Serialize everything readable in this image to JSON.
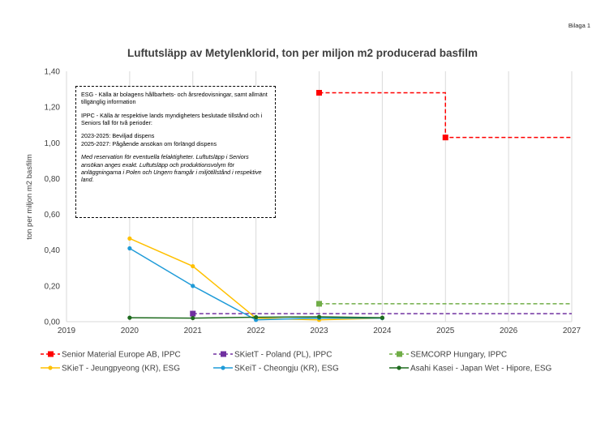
{
  "page_label": "Bilaga 1",
  "note": {
    "esg": "ESG - Källa är bolagens hållbarhets- och årsredovisningar, samt allmänt tillgänglig information",
    "ippc": "IPPC - Källa är respektive lands myndigheters beslutade tillstånd och i Seniors fall för två perioder:",
    "period1": "2023-2025: Beviljad dispens",
    "period2": "2025-2027: Pågående ansökan om förlängd dispens",
    "reservation": "Med reservation för eventuella felaktigheter. Luftutsläpp i Seniors ansökan anges exakt. Luftutsläpp och produktionsvolym för anläggningarna i Polen och Ungern framgår i miljötillstånd i respektive land."
  },
  "chart_data": {
    "type": "line",
    "title": "Luftutsläpp av Metylenklorid, ton per miljon m2 producerad basfilm",
    "xlabel": "",
    "ylabel": "ton per miljon m2 basfilm",
    "xlim": [
      2019,
      2027
    ],
    "ylim": [
      0,
      1.4
    ],
    "xticks": [
      "2019",
      "2020",
      "2021",
      "2022",
      "2023",
      "2024",
      "2025",
      "2026",
      "2027"
    ],
    "yticks": [
      "0,00",
      "0,20",
      "0,40",
      "0,60",
      "0,80",
      "1,00",
      "1,20",
      "1,40"
    ],
    "grid": "vertical",
    "legend_position": "bottom",
    "series": [
      {
        "name": "Senior Material Europe AB, IPPC",
        "color": "#ff0000",
        "style": "dashed-step",
        "marker": "square",
        "points": [
          [
            2023,
            1.28
          ],
          [
            2025,
            1.28
          ],
          [
            2025,
            1.03
          ],
          [
            2027,
            1.03
          ]
        ],
        "marker_points": [
          [
            2023,
            1.28
          ],
          [
            2025,
            1.03
          ]
        ]
      },
      {
        "name": "SKietT - Poland (PL), IPPC",
        "color": "#7030a0",
        "style": "dashed",
        "marker": "square",
        "points": [
          [
            2021,
            0.045
          ],
          [
            2027,
            0.045
          ]
        ],
        "marker_points": [
          [
            2021,
            0.045
          ]
        ]
      },
      {
        "name": "SEMCORP Hungary, IPPC",
        "color": "#70ad47",
        "style": "dashed",
        "marker": "square",
        "points": [
          [
            2023,
            0.1
          ],
          [
            2027,
            0.1
          ]
        ],
        "marker_points": [
          [
            2023,
            0.1
          ]
        ]
      },
      {
        "name": "SKieT - Jeungpyeong (KR), ESG",
        "color": "#ffc000",
        "style": "solid",
        "marker": "circle",
        "points": [
          [
            2020,
            0.465
          ],
          [
            2021,
            0.31
          ],
          [
            2022,
            0.02
          ],
          [
            2023,
            0.01
          ],
          [
            2024,
            0.02
          ]
        ],
        "marker_points": [
          [
            2020,
            0.465
          ],
          [
            2021,
            0.31
          ],
          [
            2022,
            0.02
          ],
          [
            2023,
            0.01
          ],
          [
            2024,
            0.02
          ]
        ]
      },
      {
        "name": "SKeiT - Cheongju (KR), ESG",
        "color": "#1f9bd8",
        "style": "solid",
        "marker": "circle",
        "points": [
          [
            2020,
            0.41
          ],
          [
            2021,
            0.2
          ],
          [
            2022,
            0.01
          ],
          [
            2023,
            0.02
          ],
          [
            2024,
            0.02
          ]
        ],
        "marker_points": [
          [
            2020,
            0.41
          ],
          [
            2021,
            0.2
          ],
          [
            2022,
            0.01
          ],
          [
            2023,
            0.02
          ],
          [
            2024,
            0.02
          ]
        ]
      },
      {
        "name": "Asahi Kasei - Japan Wet - Hipore, ESG",
        "color": "#1e6b1e",
        "style": "solid",
        "marker": "circle",
        "points": [
          [
            2020,
            0.022
          ],
          [
            2021,
            0.02
          ],
          [
            2022,
            0.025
          ],
          [
            2023,
            0.027
          ],
          [
            2024,
            0.022
          ]
        ],
        "marker_points": [
          [
            2020,
            0.022
          ],
          [
            2021,
            0.02
          ],
          [
            2022,
            0.025
          ],
          [
            2023,
            0.027
          ],
          [
            2024,
            0.022
          ]
        ]
      }
    ]
  }
}
